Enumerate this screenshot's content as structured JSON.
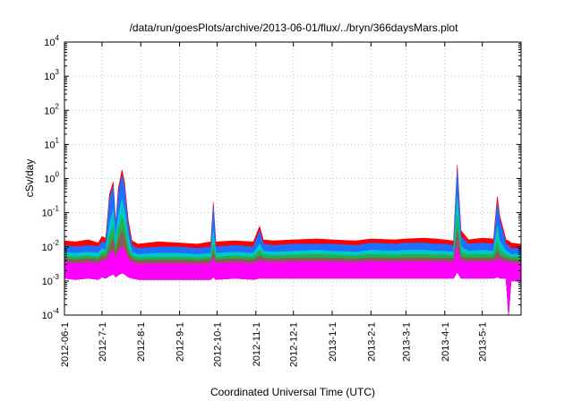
{
  "chart_data": {
    "type": "area",
    "title": "/data/run/goesPlots/archive/2013-06-01/flux/../bryn/366daysMars.plot",
    "xlabel": "Coordinated Universal Time (UTC)",
    "ylabel": "cSv/day",
    "yscale": "log",
    "ylim": [
      0.0001,
      10000
    ],
    "xlim": [
      "2012-06-01",
      "2013-06-01"
    ],
    "grid": true,
    "legend": "none",
    "y_ticks": [
      {
        "base": "10",
        "exp": "-4"
      },
      {
        "base": "10",
        "exp": "-3"
      },
      {
        "base": "10",
        "exp": "-2"
      },
      {
        "base": "10",
        "exp": "-1"
      },
      {
        "base": "10",
        "exp": "0"
      },
      {
        "base": "10",
        "exp": "1"
      },
      {
        "base": "10",
        "exp": "2"
      },
      {
        "base": "10",
        "exp": "3"
      },
      {
        "base": "10",
        "exp": "4"
      }
    ],
    "x_ticks": [
      "2012-06-1",
      "2012-7-1",
      "2012-8-1",
      "2012-9-1",
      "2012-10-1",
      "2012-11-1",
      "2012-12-1",
      "2013-1-1",
      "2013-2-1",
      "2013-3-1",
      "2013-4-1",
      "2013-5-1"
    ],
    "x": [
      "2012-06-01",
      "2012-06-10",
      "2012-06-20",
      "2012-06-28",
      "2012-07-01",
      "2012-07-04",
      "2012-07-07",
      "2012-07-10",
      "2012-07-12",
      "2012-07-14",
      "2012-07-17",
      "2012-07-19",
      "2012-07-22",
      "2012-07-25",
      "2012-07-30",
      "2012-08-15",
      "2012-09-01",
      "2012-09-15",
      "2012-09-26",
      "2012-09-28",
      "2012-09-30",
      "2012-10-15",
      "2012-10-30",
      "2012-11-04",
      "2012-11-07",
      "2012-11-15",
      "2012-12-01",
      "2012-12-20",
      "2013-01-01",
      "2013-01-20",
      "2013-02-01",
      "2013-02-20",
      "2013-03-01",
      "2013-03-15",
      "2013-03-25",
      "2013-04-01",
      "2013-04-08",
      "2013-04-11",
      "2013-04-14",
      "2013-04-20",
      "2013-05-01",
      "2013-05-10",
      "2013-05-13",
      "2013-05-15",
      "2013-05-20",
      "2013-05-22",
      "2013-05-24",
      "2013-06-01"
    ],
    "series": [
      {
        "color": "#ff0000",
        "values": [
          0.015,
          0.014,
          0.016,
          0.013,
          0.02,
          0.018,
          0.35,
          0.8,
          0.05,
          0.5,
          1.8,
          0.8,
          0.06,
          0.015,
          0.012,
          0.014,
          0.013,
          0.012,
          0.014,
          0.2,
          0.014,
          0.015,
          0.014,
          0.04,
          0.016,
          0.015,
          0.016,
          0.017,
          0.016,
          0.015,
          0.017,
          0.016,
          0.017,
          0.018,
          0.017,
          0.016,
          0.015,
          2.5,
          0.03,
          0.016,
          0.018,
          0.017,
          0.3,
          0.08,
          0.016,
          0.015,
          0.013,
          0.012
        ]
      },
      {
        "color": "#1e6fff",
        "values": [
          0.011,
          0.01,
          0.011,
          0.01,
          0.014,
          0.013,
          0.25,
          0.6,
          0.04,
          0.35,
          1.3,
          0.6,
          0.04,
          0.011,
          0.009,
          0.01,
          0.01,
          0.009,
          0.01,
          0.15,
          0.01,
          0.011,
          0.01,
          0.03,
          0.012,
          0.011,
          0.012,
          0.012,
          0.012,
          0.011,
          0.013,
          0.012,
          0.013,
          0.013,
          0.012,
          0.012,
          0.011,
          1.8,
          0.02,
          0.012,
          0.013,
          0.012,
          0.2,
          0.06,
          0.012,
          0.011,
          0.009,
          0.009
        ]
      },
      {
        "color": "#00c8c8",
        "values": [
          0.007,
          0.0065,
          0.007,
          0.0065,
          0.009,
          0.008,
          0.05,
          0.12,
          0.015,
          0.08,
          0.25,
          0.12,
          0.02,
          0.007,
          0.006,
          0.0065,
          0.0065,
          0.006,
          0.0065,
          0.03,
          0.0065,
          0.007,
          0.0065,
          0.012,
          0.0075,
          0.007,
          0.0075,
          0.008,
          0.0075,
          0.007,
          0.008,
          0.0075,
          0.008,
          0.008,
          0.0075,
          0.0075,
          0.007,
          0.3,
          0.01,
          0.0075,
          0.008,
          0.0075,
          0.04,
          0.015,
          0.0075,
          0.007,
          0.006,
          0.006
        ]
      },
      {
        "color": "#22b14c",
        "values": [
          0.0055,
          0.005,
          0.0055,
          0.005,
          0.007,
          0.0065,
          0.02,
          0.04,
          0.009,
          0.03,
          0.08,
          0.04,
          0.01,
          0.0055,
          0.0048,
          0.005,
          0.005,
          0.0048,
          0.005,
          0.012,
          0.005,
          0.0055,
          0.005,
          0.008,
          0.0058,
          0.0055,
          0.0058,
          0.006,
          0.0058,
          0.0055,
          0.006,
          0.0058,
          0.006,
          0.006,
          0.0058,
          0.0058,
          0.0055,
          0.08,
          0.007,
          0.0058,
          0.006,
          0.0058,
          0.015,
          0.008,
          0.0058,
          0.0055,
          0.005,
          0.005
        ]
      },
      {
        "color": "#8b5a5a",
        "values": [
          0.0045,
          0.0042,
          0.0045,
          0.0042,
          0.0055,
          0.005,
          0.01,
          0.018,
          0.006,
          0.014,
          0.03,
          0.018,
          0.0065,
          0.0045,
          0.004,
          0.0042,
          0.0042,
          0.004,
          0.0042,
          0.007,
          0.0042,
          0.0045,
          0.0042,
          0.0055,
          0.0047,
          0.0045,
          0.0047,
          0.0048,
          0.0047,
          0.0045,
          0.0048,
          0.0047,
          0.0048,
          0.0048,
          0.0047,
          0.0047,
          0.0045,
          0.03,
          0.005,
          0.0047,
          0.0048,
          0.0047,
          0.008,
          0.0055,
          0.0047,
          0.0045,
          0.0042,
          0.0042
        ]
      },
      {
        "color": "#ff00ff",
        "values": [
          0.0035,
          0.0032,
          0.0035,
          0.0032,
          0.004,
          0.0038,
          0.006,
          0.008,
          0.0045,
          0.007,
          0.01,
          0.008,
          0.0045,
          0.0035,
          0.0031,
          0.0032,
          0.0032,
          0.0031,
          0.0032,
          0.0045,
          0.0032,
          0.0035,
          0.0032,
          0.004,
          0.0036,
          0.0035,
          0.0036,
          0.0037,
          0.0036,
          0.0035,
          0.0037,
          0.0036,
          0.0037,
          0.0037,
          0.0036,
          0.0036,
          0.0035,
          0.01,
          0.0038,
          0.0036,
          0.0037,
          0.0036,
          0.0045,
          0.004,
          0.0036,
          0.0035,
          0.0033,
          0.0033
        ]
      }
    ],
    "baseline_min": [
      0.0012,
      0.0011,
      0.0012,
      0.0011,
      0.0013,
      0.0012,
      0.0014,
      0.0016,
      0.0013,
      0.0015,
      0.0017,
      0.0016,
      0.0013,
      0.0012,
      0.0011,
      0.0011,
      0.0011,
      0.0011,
      0.0011,
      0.0013,
      0.0011,
      0.0012,
      0.0011,
      0.0012,
      0.0012,
      0.0012,
      0.0012,
      0.0012,
      0.0012,
      0.0012,
      0.0012,
      0.0012,
      0.0012,
      0.0012,
      0.0012,
      0.0012,
      0.0012,
      0.0018,
      0.0012,
      0.0012,
      0.0012,
      0.0012,
      0.0013,
      0.0012,
      0.0012,
      0.0001,
      0.001,
      0.001
    ]
  }
}
